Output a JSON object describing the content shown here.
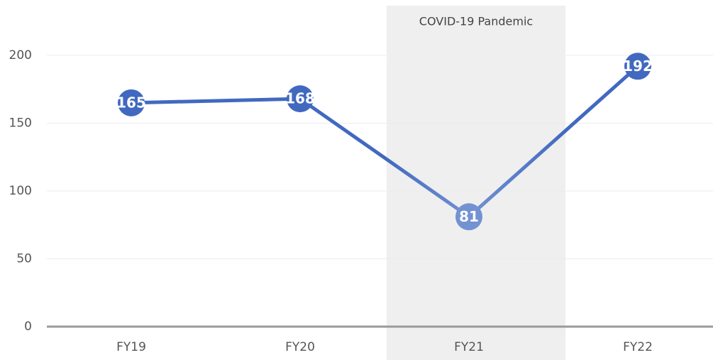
{
  "chart_data": {
    "type": "line",
    "categories": [
      "FY19",
      "FY20",
      "FY21",
      "FY22"
    ],
    "series": [
      {
        "name": null,
        "color": "#4169c0",
        "values": [
          165,
          168,
          81,
          192
        ]
      }
    ],
    "ylim": [
      0,
      200
    ],
    "yticks": [
      0,
      50,
      100,
      150,
      200
    ],
    "grid": true,
    "annotation": {
      "text": "COVID-19 Pandemic",
      "x": "FY21",
      "shade_color": "#efefef",
      "point_color": "#7392d2"
    }
  }
}
